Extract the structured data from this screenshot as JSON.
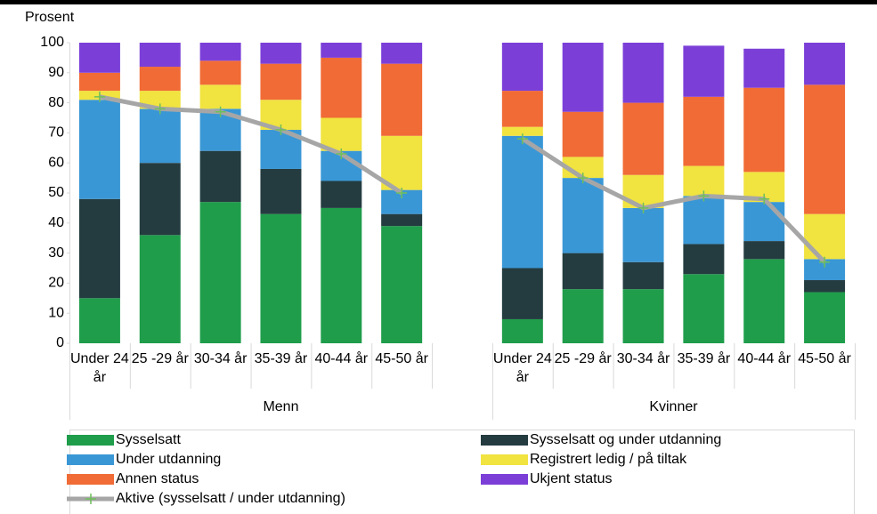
{
  "chart_data": {
    "type": "bar",
    "stacked": true,
    "y_label": "Prosent",
    "categories": [
      "Under 24 år",
      "25 -29 år",
      "30-34 år",
      "35-39 år",
      "40-44 år",
      "45-50 år",
      null,
      "Under 24 år",
      "25 -29 år",
      "30-34 år",
      "35-39 år",
      "40-44 år",
      "45-50 år"
    ],
    "groups": [
      "Menn",
      "Kvinner"
    ],
    "ylim": [
      0,
      100
    ],
    "yticks": [
      0,
      10,
      20,
      30,
      40,
      50,
      60,
      70,
      80,
      90,
      100
    ],
    "series": [
      {
        "name": "Sysselsatt",
        "color": "#1f9d4b",
        "values": [
          15,
          36,
          47,
          43,
          45,
          39,
          null,
          8,
          18,
          18,
          23,
          28,
          17
        ]
      },
      {
        "name": "Sysselsatt og under utdanning",
        "color": "#243c40",
        "values": [
          33,
          24,
          17,
          15,
          9,
          4,
          null,
          17,
          12,
          9,
          10,
          6,
          4
        ]
      },
      {
        "name": "Under utdanning",
        "color": "#3a97d5",
        "values": [
          33,
          18,
          14,
          13,
          10,
          8,
          null,
          44,
          25,
          18,
          16,
          13,
          7
        ]
      },
      {
        "name": "Registrert ledig / på tiltak",
        "color": "#f1e340",
        "values": [
          3,
          6,
          8,
          10,
          11,
          18,
          null,
          3,
          7,
          11,
          10,
          10,
          15
        ]
      },
      {
        "name": "Annen status",
        "color": "#f06b36",
        "values": [
          6,
          8,
          8,
          12,
          20,
          24,
          null,
          12,
          15,
          24,
          23,
          28,
          43
        ]
      },
      {
        "name": "Ukjent status",
        "color": "#7b3fd8",
        "values": [
          10,
          8,
          6,
          7,
          5,
          7,
          null,
          16,
          23,
          20,
          17,
          13,
          14
        ]
      },
      {
        "name": "Aktive (sysselsatt / under utdanning)",
        "type": "line",
        "color": "#a6a6a6",
        "marker_color": "#6fbf5a",
        "values": [
          82,
          78,
          77,
          71,
          63,
          50,
          null,
          68,
          55,
          45,
          49,
          48,
          27
        ]
      }
    ]
  }
}
